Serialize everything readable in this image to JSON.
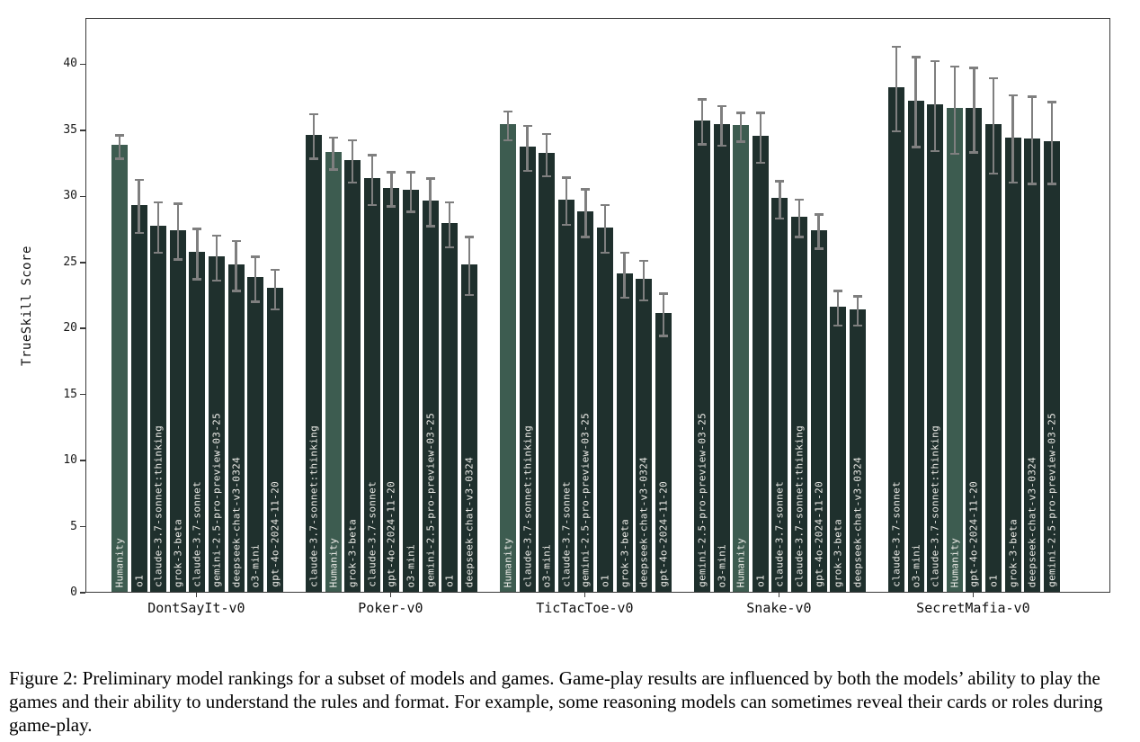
{
  "figure": {
    "ylabel": "TrueSkill Score",
    "caption": "Figure 2: Preliminary model rankings for a subset of models and games. Game-play results are influenced by both the models’ ability to play the games and their ability to understand the rules and format. For example, some reasoning models can sometimes reveal their cards or roles during game-play.",
    "highlight_model": "Humanity",
    "colors": {
      "bar": "#1f302d",
      "bar_humanity": "#3d5c50",
      "error_bar": "#7f7f7f",
      "axis": "#3a3a3a",
      "bar_label_text": "#ecebe7"
    }
  },
  "chart_data": {
    "type": "bar",
    "title": "",
    "xlabel": "",
    "ylabel": "TrueSkill Score",
    "ylim": [
      0,
      43.5
    ],
    "yticks": [
      0,
      5,
      10,
      15,
      20,
      25,
      30,
      35,
      40
    ],
    "grid": false,
    "legend": "none",
    "error_bars": true,
    "groups": [
      {
        "game": "DontSayIt-v0",
        "bars": [
          {
            "model": "Humanity",
            "value": 33.8,
            "error": 0.9
          },
          {
            "model": "o1",
            "value": 29.3,
            "error": 2.0
          },
          {
            "model": "claude-3.7-sonnet:thinking",
            "value": 27.7,
            "error": 1.9
          },
          {
            "model": "grok-3-beta",
            "value": 27.4,
            "error": 2.1
          },
          {
            "model": "claude-3.7-sonnet",
            "value": 25.7,
            "error": 1.9
          },
          {
            "model": "gemini-2.5-pro-preview-03-25",
            "value": 25.4,
            "error": 1.7
          },
          {
            "model": "deepseek-chat-v3-0324",
            "value": 24.8,
            "error": 1.9
          },
          {
            "model": "o3-mini",
            "value": 23.8,
            "error": 1.7
          },
          {
            "model": "gpt-4o-2024-11-20",
            "value": 23.0,
            "error": 1.5
          }
        ]
      },
      {
        "game": "Poker-v0",
        "bars": [
          {
            "model": "claude-3.7-sonnet:thinking",
            "value": 34.6,
            "error": 1.7
          },
          {
            "model": "Humanity",
            "value": 33.3,
            "error": 1.2
          },
          {
            "model": "grok-3-beta",
            "value": 32.7,
            "error": 1.6
          },
          {
            "model": "claude-3.7-sonnet",
            "value": 31.3,
            "error": 1.9
          },
          {
            "model": "gpt-4o-2024-11-20",
            "value": 30.6,
            "error": 1.3
          },
          {
            "model": "o3-mini",
            "value": 30.4,
            "error": 1.5
          },
          {
            "model": "gemini-2.5-pro-preview-03-25",
            "value": 29.6,
            "error": 1.8
          },
          {
            "model": "o1",
            "value": 27.9,
            "error": 1.7
          },
          {
            "model": "deepseek-chat-v3-0324",
            "value": 24.8,
            "error": 2.2
          }
        ]
      },
      {
        "game": "TicTacToe-v0",
        "bars": [
          {
            "model": "Humanity",
            "value": 35.4,
            "error": 1.1
          },
          {
            "model": "claude-3.7-sonnet:thinking",
            "value": 33.7,
            "error": 1.7
          },
          {
            "model": "o3-mini",
            "value": 33.2,
            "error": 1.6
          },
          {
            "model": "claude-3.7-sonnet",
            "value": 29.7,
            "error": 1.8
          },
          {
            "model": "gemini-2.5-pro-preview-03-25",
            "value": 28.8,
            "error": 1.8
          },
          {
            "model": "o1",
            "value": 27.6,
            "error": 1.8
          },
          {
            "model": "grok-3-beta",
            "value": 24.1,
            "error": 1.7
          },
          {
            "model": "deepseek-chat-v3-0324",
            "value": 23.7,
            "error": 1.5
          },
          {
            "model": "gpt-4o-2024-11-20",
            "value": 21.1,
            "error": 1.6
          }
        ]
      },
      {
        "game": "Snake-v0",
        "bars": [
          {
            "model": "gemini-2.5-pro-preview-03-25",
            "value": 35.7,
            "error": 1.7
          },
          {
            "model": "o3-mini",
            "value": 35.4,
            "error": 1.5
          },
          {
            "model": "Humanity",
            "value": 35.3,
            "error": 1.1
          },
          {
            "model": "o1",
            "value": 34.5,
            "error": 1.9
          },
          {
            "model": "claude-3.7-sonnet",
            "value": 29.8,
            "error": 1.4
          },
          {
            "model": "claude-3.7-sonnet:thinking",
            "value": 28.4,
            "error": 1.4
          },
          {
            "model": "gpt-4o-2024-11-20",
            "value": 27.4,
            "error": 1.3
          },
          {
            "model": "grok-3-beta",
            "value": 21.6,
            "error": 1.3
          },
          {
            "model": "deepseek-chat-v3-0324",
            "value": 21.4,
            "error": 1.1
          }
        ]
      },
      {
        "game": "SecretMafia-v0",
        "bars": [
          {
            "model": "claude-3.7-sonnet",
            "value": 38.2,
            "error": 3.2
          },
          {
            "model": "o3-mini",
            "value": 37.2,
            "error": 3.4
          },
          {
            "model": "claude-3.7-sonnet:thinking",
            "value": 36.9,
            "error": 3.4
          },
          {
            "model": "Humanity",
            "value": 36.6,
            "error": 3.3
          },
          {
            "model": "gpt-4o-2024-11-20",
            "value": 36.6,
            "error": 3.2
          },
          {
            "model": "o1",
            "value": 35.4,
            "error": 3.6
          },
          {
            "model": "grok-3-beta",
            "value": 34.4,
            "error": 3.3
          },
          {
            "model": "deepseek-chat-v3-0324",
            "value": 34.3,
            "error": 3.3
          },
          {
            "model": "gemini-2.5-pro-preview-03-25",
            "value": 34.1,
            "error": 3.1
          }
        ]
      }
    ]
  }
}
